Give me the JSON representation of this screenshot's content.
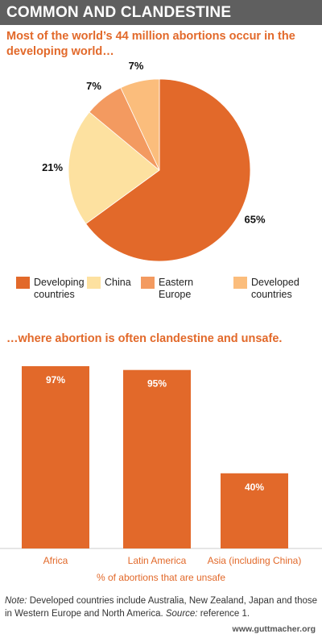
{
  "header": {
    "title": "COMMON AND CLANDESTINE"
  },
  "chart_data": [
    {
      "type": "pie",
      "title": "Most of the world’s 44 million abortions occur in the developing world…",
      "slices": [
        {
          "name": "Developing countries",
          "value": 65,
          "label": "65%",
          "color": "#e2692a"
        },
        {
          "name": "China",
          "value": 21,
          "label": "21%",
          "color": "#fde1a0"
        },
        {
          "name": "Eastern Europe",
          "value": 7,
          "label": "7%",
          "color": "#f39a60"
        },
        {
          "name": "Developed countries",
          "value": 7,
          "label": "7%",
          "color": "#fbbd7c"
        }
      ],
      "legend": [
        {
          "label": "Developing\ncountries",
          "color": "#e2692a"
        },
        {
          "label": "China",
          "color": "#fde1a0"
        },
        {
          "label": "Eastern Europe",
          "color": "#f39a60"
        },
        {
          "label": "Developed\ncountries",
          "color": "#fbbd7c"
        }
      ],
      "legend_position": "bottom"
    },
    {
      "type": "bar",
      "title": "…where abortion is often clandestine and unsafe.",
      "categories": [
        "Africa",
        "Latin America",
        "Asia (including China)"
      ],
      "values": [
        97,
        95,
        40
      ],
      "value_labels": [
        "97%",
        "95%",
        "40%"
      ],
      "xlabel": "% of abortions that are unsafe",
      "ylim": [
        0,
        100
      ],
      "bar_color": "#e2692a",
      "grid": false
    }
  ],
  "note": {
    "prefix": "Note:",
    "text": " Developed countries include Australia, New Zealand, Japan and those in Western Europe and North America. ",
    "source_prefix": "Source:",
    "source_text": " reference 1."
  },
  "footer": {
    "website": "www.guttmacher.org"
  }
}
